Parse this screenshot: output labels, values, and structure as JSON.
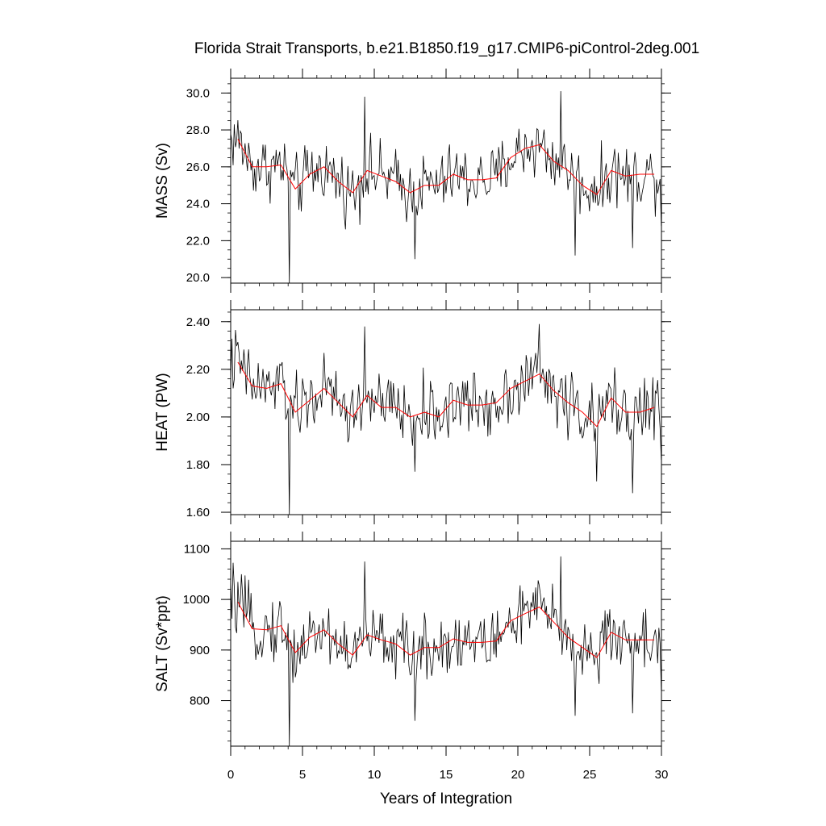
{
  "title": "Florida Strait Transports, b.e21.B1850.f19_g17.CMIP6-piControl-2deg.001",
  "colors": {
    "raw_series": "#000000",
    "smooth_series": "#ff0000",
    "frame": "#000000"
  },
  "chart_data": {
    "type": "line",
    "title": "Florida Strait Transports, b.e21.B1850.f19_g17.CMIP6-piControl-2deg.001",
    "xlabel": "Years of Integration",
    "xlim": [
      0,
      30
    ],
    "x_ticks": [
      0,
      5,
      10,
      15,
      20,
      25,
      30
    ],
    "x_tick_labels": [
      "0",
      "5",
      "10",
      "15",
      "20",
      "25",
      "30"
    ],
    "grid": false,
    "panels": [
      {
        "ylabel": "MASS (Sv)",
        "ylim": [
          19.7,
          30.8
        ],
        "y_ticks": [
          20,
          22,
          24,
          26,
          28,
          30
        ],
        "y_tick_labels": [
          "20.0",
          "22.0",
          "24.0",
          "26.0",
          "28.0",
          "30.0"
        ],
        "y_minor_step": 0.5,
        "raw_mean": 25.4,
        "raw_amplitude": 1.5,
        "raw_sample_step": 0.0833,
        "raw_extremes": [
          [
            4.1,
            19.7
          ],
          [
            9.3,
            29.8
          ],
          [
            12.8,
            21.0
          ],
          [
            23.0,
            30.1
          ],
          [
            24.0,
            21.2
          ],
          [
            25.3,
            25.5
          ],
          [
            28.0,
            21.6
          ],
          [
            30.0,
            22.8
          ]
        ],
        "smooth": {
          "x": [
            0.5,
            1.5,
            2.5,
            3.5,
            4.5,
            5.5,
            6.5,
            7.5,
            8.5,
            9.5,
            10.5,
            11.5,
            12.5,
            13.5,
            14.5,
            15.5,
            16.5,
            17.5,
            18.5,
            19.5,
            20.5,
            21.5,
            22.5,
            23.5,
            24.5,
            25.5,
            26.5,
            27.5,
            28.5,
            29.5
          ],
          "y": [
            27.5,
            26.0,
            26.0,
            26.1,
            24.8,
            25.6,
            26.0,
            25.2,
            24.6,
            25.8,
            25.5,
            25.2,
            24.6,
            25.0,
            25.0,
            25.6,
            25.3,
            25.3,
            25.4,
            26.5,
            27.0,
            27.2,
            26.3,
            25.8,
            25.0,
            24.5,
            25.8,
            25.5,
            25.6,
            25.6
          ]
        }
      },
      {
        "ylabel": "HEAT (PW)",
        "ylim": [
          1.59,
          2.45
        ],
        "y_ticks": [
          1.6,
          1.8,
          2.0,
          2.2,
          2.4
        ],
        "y_tick_labels": [
          "1.60",
          "1.80",
          "2.00",
          "2.20",
          "2.40"
        ],
        "y_minor_step": 0.04,
        "raw_mean": 2.04,
        "raw_amplitude": 0.12,
        "raw_sample_step": 0.0833,
        "raw_extremes": [
          [
            4.1,
            1.59
          ],
          [
            9.3,
            2.38
          ],
          [
            12.8,
            1.77
          ],
          [
            21.5,
            2.39
          ],
          [
            25.5,
            1.73
          ],
          [
            28.0,
            1.68
          ],
          [
            30.0,
            1.82
          ]
        ],
        "smooth": {
          "x": [
            0.5,
            1.5,
            2.5,
            3.5,
            4.5,
            5.5,
            6.5,
            7.5,
            8.5,
            9.5,
            10.5,
            11.5,
            12.5,
            13.5,
            14.5,
            15.5,
            16.5,
            17.5,
            18.5,
            19.5,
            20.5,
            21.5,
            22.5,
            23.5,
            24.5,
            25.5,
            26.5,
            27.5,
            28.5,
            29.5
          ],
          "y": [
            2.23,
            2.13,
            2.12,
            2.14,
            2.02,
            2.07,
            2.12,
            2.06,
            2.0,
            2.09,
            2.04,
            2.04,
            2.0,
            2.02,
            2.0,
            2.07,
            2.05,
            2.05,
            2.06,
            2.12,
            2.15,
            2.18,
            2.11,
            2.06,
            2.02,
            1.96,
            2.08,
            2.02,
            2.02,
            2.04
          ]
        }
      },
      {
        "ylabel": "SALT (Sv*ppt)",
        "ylim": [
          710,
          1115
        ],
        "y_ticks": [
          800,
          900,
          1000,
          1100
        ],
        "y_tick_labels": [
          "800",
          "900",
          "1000",
          "1100"
        ],
        "y_minor_step": 20,
        "raw_mean": 920,
        "raw_amplitude": 55,
        "raw_sample_step": 0.0833,
        "raw_extremes": [
          [
            4.1,
            710
          ],
          [
            9.3,
            1075
          ],
          [
            12.8,
            760
          ],
          [
            23.0,
            1085
          ],
          [
            24.0,
            770
          ],
          [
            28.0,
            775
          ],
          [
            30.0,
            820
          ]
        ],
        "smooth": {
          "x": [
            0.5,
            1.5,
            2.5,
            3.5,
            4.5,
            5.5,
            6.5,
            7.5,
            8.5,
            9.5,
            10.5,
            11.5,
            12.5,
            13.5,
            14.5,
            15.5,
            16.5,
            17.5,
            18.5,
            19.5,
            20.5,
            21.5,
            22.5,
            23.5,
            24.5,
            25.5,
            26.5,
            27.5,
            28.5,
            29.5
          ],
          "y": [
            995,
            942,
            940,
            948,
            895,
            925,
            940,
            912,
            890,
            930,
            920,
            912,
            890,
            905,
            905,
            922,
            915,
            915,
            918,
            958,
            972,
            985,
            955,
            925,
            905,
            885,
            935,
            920,
            920,
            920
          ]
        }
      }
    ]
  }
}
